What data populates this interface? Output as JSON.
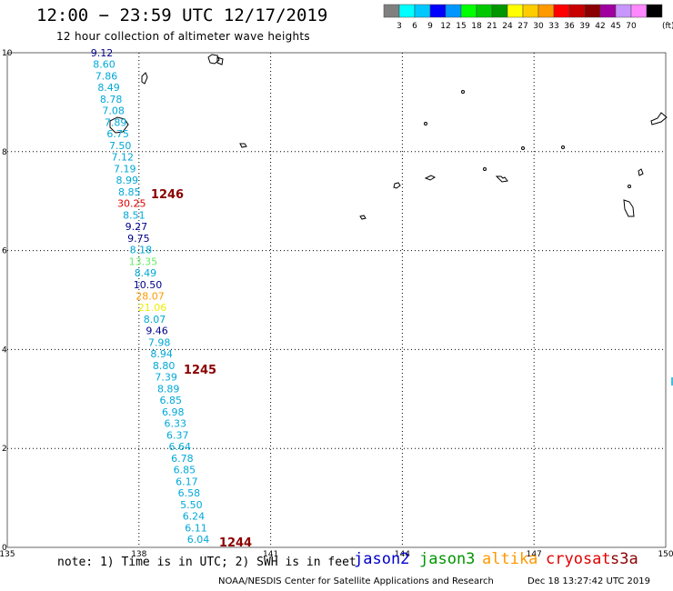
{
  "header": {
    "title": "12:00 − 23:59 UTC 12/17/2019",
    "subtitle": "12 hour collection of altimeter wave heights"
  },
  "legend": {
    "colors": [
      "#808080",
      "#00ffff",
      "#00c8ff",
      "#0000ff",
      "#0096ff",
      "#00ff00",
      "#00c800",
      "#009600",
      "#ffff00",
      "#ffcc00",
      "#ff9900",
      "#ff0000",
      "#c80000",
      "#8b0000",
      "#a000a0",
      "#c896ff",
      "#ff88ff",
      "#000000"
    ],
    "labels": [
      "3",
      "6",
      "9",
      "12",
      "15",
      "18",
      "21",
      "24",
      "27",
      "30",
      "33",
      "36",
      "39",
      "42",
      "45",
      "70"
    ],
    "unit": "(ft)"
  },
  "axes": {
    "x_ticks": [
      "135",
      "138",
      "141",
      "144",
      "147",
      "150"
    ],
    "y_ticks": [
      "10",
      "8",
      "6",
      "4",
      "2",
      "0"
    ]
  },
  "readings": [
    {
      "text": "9.12",
      "color": "#00008b"
    },
    {
      "text": "8.60",
      "color": "#00a8d8"
    },
    {
      "text": "7.86",
      "color": "#00a8d8"
    },
    {
      "text": "8.49",
      "color": "#00a8d8"
    },
    {
      "text": "8.78",
      "color": "#00a8d8"
    },
    {
      "text": "7.08",
      "color": "#00a8d8"
    },
    {
      "text": "7.89",
      "color": "#00a8d8"
    },
    {
      "text": "6.75",
      "color": "#00a8d8"
    },
    {
      "text": "7.50",
      "color": "#00a8d8"
    },
    {
      "text": "7.12",
      "color": "#00a8d8"
    },
    {
      "text": "7.19",
      "color": "#00a8d8"
    },
    {
      "text": "8.99",
      "color": "#00a8d8"
    },
    {
      "text": "8.85",
      "color": "#00a8d8"
    },
    {
      "text": "30.25",
      "color": "#e00000"
    },
    {
      "text": "8.51",
      "color": "#00a8d8"
    },
    {
      "text": "9.27",
      "color": "#00008b"
    },
    {
      "text": "9.75",
      "color": "#00008b"
    },
    {
      "text": "8.18",
      "color": "#00a8d8"
    },
    {
      "text": "13.35",
      "color": "#66ee66"
    },
    {
      "text": "8.49",
      "color": "#00a8d8"
    },
    {
      "text": "10.50",
      "color": "#00008b"
    },
    {
      "text": "28.07",
      "color": "#ff9900"
    },
    {
      "text": "21.06",
      "color": "#eeee00"
    },
    {
      "text": "8.07",
      "color": "#00a8d8"
    },
    {
      "text": "9.46",
      "color": "#00008b"
    },
    {
      "text": "7.98",
      "color": "#00a8d8"
    },
    {
      "text": "8.94",
      "color": "#00a8d8"
    },
    {
      "text": "8.80",
      "color": "#00a8d8"
    },
    {
      "text": "7.39",
      "color": "#00a8d8"
    },
    {
      "text": "8.89",
      "color": "#00a8d8"
    },
    {
      "text": "6.85",
      "color": "#00a8d8"
    },
    {
      "text": "6.98",
      "color": "#00a8d8"
    },
    {
      "text": "6.33",
      "color": "#00a8d8"
    },
    {
      "text": "6.37",
      "color": "#00a8d8"
    },
    {
      "text": "6.64",
      "color": "#00a8d8"
    },
    {
      "text": "6.78",
      "color": "#00a8d8"
    },
    {
      "text": "6.85",
      "color": "#00a8d8"
    },
    {
      "text": "6.17",
      "color": "#00a8d8"
    },
    {
      "text": "6.58",
      "color": "#00a8d8"
    },
    {
      "text": "5.50",
      "color": "#00a8d8"
    },
    {
      "text": "6.24",
      "color": "#00a8d8"
    },
    {
      "text": "6.11",
      "color": "#00a8d8"
    },
    {
      "text": "6.04",
      "color": "#00a8d8"
    }
  ],
  "time_markers": [
    {
      "text": "1246",
      "color": "#8b0000"
    },
    {
      "text": "1245",
      "color": "#8b0000"
    },
    {
      "text": "1244",
      "color": "#8b0000"
    }
  ],
  "footer": {
    "note": "note: 1) Time is in UTC; 2) SWH is in feet",
    "satellites": [
      {
        "name": "jason2",
        "color": "#0000cc"
      },
      {
        "name": "jason3",
        "color": "#009600"
      },
      {
        "name": "altika",
        "color": "#ff9900"
      },
      {
        "name": "cryosat",
        "color": "#e00000"
      },
      {
        "name": "s3a",
        "color": "#8b0000"
      }
    ],
    "credit": "NOAA/NESDIS Center for Satellite Applications and Research",
    "timestamp": "Dec 18 13:27:42 UTC 2019"
  }
}
